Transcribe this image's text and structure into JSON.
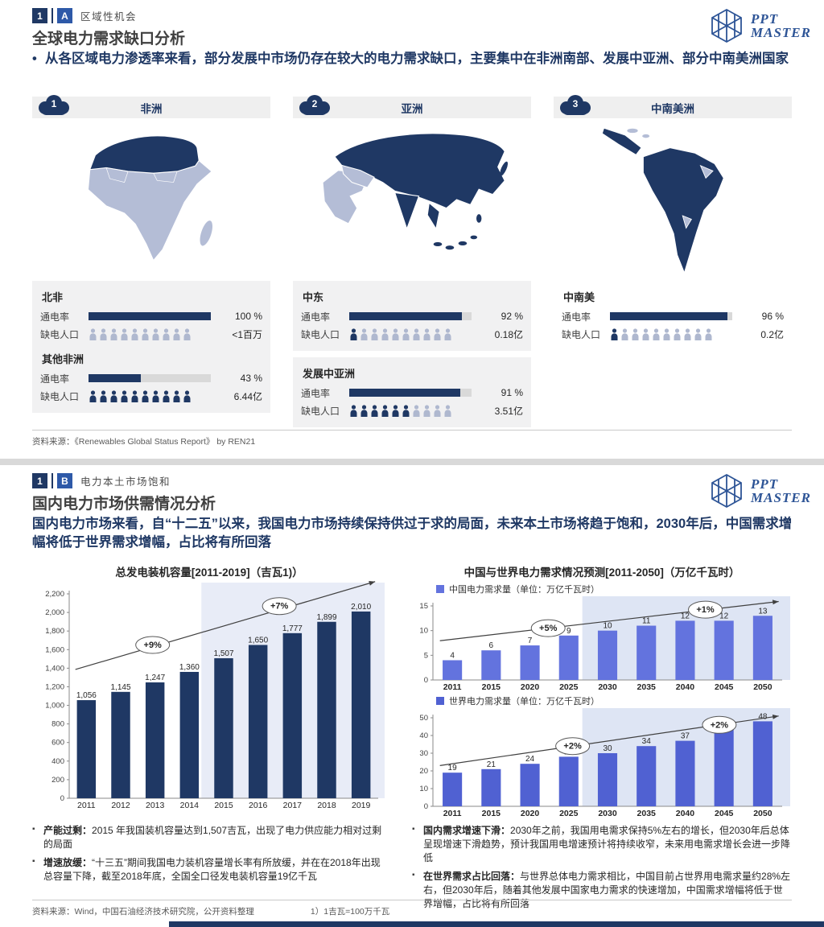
{
  "logo": {
    "line1": "PPT",
    "line2": "MASTER"
  },
  "colors": {
    "navy": "#1F3864",
    "map_light": "#B4BDD6",
    "map_dark": "#1F3864",
    "people_filled": "#1F3864",
    "people_empty": "#AFB8CF"
  },
  "slide1": {
    "badge_num": "1",
    "badge_letter": "A",
    "section_label": "区域性机会",
    "title": "全球电力需求缺口分析",
    "lead": "从各区域电力渗透率来看，部分发展中市场仍存在较大的电力需求缺口，主要集中在非洲南部、发展中亚洲、部分中南美洲国家",
    "columns": [
      {
        "num": "1",
        "region": "非洲",
        "groups": [
          {
            "name": "北非",
            "access_label": "通电率",
            "gap_label": "缺电人口",
            "pct": 100,
            "pct_text": "100 %",
            "gap_text": "<1百万",
            "people_filled": 0,
            "people_total": 10
          },
          {
            "name": "其他非洲",
            "access_label": "通电率",
            "gap_label": "缺电人口",
            "pct": 43,
            "pct_text": "43 %",
            "gap_text": "6.44亿",
            "people_filled": 10,
            "people_total": 10
          }
        ]
      },
      {
        "num": "2",
        "region": "亚洲",
        "groups": [
          {
            "name": "中东",
            "access_label": "通电率",
            "gap_label": "缺电人口",
            "pct": 92,
            "pct_text": "92 %",
            "gap_text": "0.18亿",
            "people_filled": 1,
            "people_total": 10
          },
          {
            "name": "发展中亚洲",
            "access_label": "通电率",
            "gap_label": "缺电人口",
            "pct": 91,
            "pct_text": "91 %",
            "gap_text": "3.51亿",
            "people_filled": 6,
            "people_total": 10
          }
        ]
      },
      {
        "num": "3",
        "region": "中南美洲",
        "groups": [
          {
            "name": "中南美",
            "access_label": "通电率",
            "gap_label": "缺电人口",
            "pct": 96,
            "pct_text": "96 %",
            "gap_text": "0.2亿",
            "people_filled": 1,
            "people_total": 10
          }
        ]
      }
    ],
    "source": "资料来源：《Renewables Global Status Report》 by REN21"
  },
  "slide2": {
    "badge_num": "1",
    "badge_letter": "B",
    "section_label": "电力本土市场饱和",
    "title": "国内电力市场供需情况分析",
    "lead": "国内电力市场来看，自“十二五”以来，我国电力市场持续保持供过于求的局面，未来本土市场将趋于饱和，2030年后，中国需求增幅将低于世界需求增幅，占比将有所回落",
    "left_chart_title": "总发电装机容量[2011-2019]（吉瓦1)）",
    "right_chart_title": "中国与世界电力需求情况预测[2011-2050]（万亿千瓦时）",
    "china_legend": "中国电力需求量（单位：万亿千瓦时）",
    "world_legend": "世界电力需求量（单位：万亿千瓦时）",
    "notes_left": [
      {
        "lead": "产能过剩：",
        "text": "2015 年我国装机容量达到1,507吉瓦，出现了电力供应能力相对过剩的局面"
      },
      {
        "lead": "增速放缓：",
        "text": "“十三五”期间我国电力装机容量增长率有所放缓，并在在2018年出现总容量下降，截至2018年底，全国全口径发电装机容量19亿千瓦"
      }
    ],
    "notes_right": [
      {
        "lead": "国内需求增速下滑：",
        "text": "2030年之前，我国用电需求保持5%左右的增长，但2030年后总体呈现增速下滑趋势，预计我国用电增速预计将持续收窄，未来用电需求增长会进一步降低"
      },
      {
        "lead": "在世界需求占比回落：",
        "text": "与世界总体电力需求相比，中国目前占世界用电需求量约28%左右，但2030年后，随着其他发展中国家电力需求的快速增加，中国需求增幅将低于世界增幅，占比将有所回落"
      }
    ],
    "source": "资料来源：Wind，中国石油经济技术研究院，公开资料整理",
    "footnote": "1）1吉瓦=100万千瓦"
  },
  "chart_data": [
    {
      "type": "bar",
      "title": "总发电装机容量[2011-2019]（吉瓦）",
      "categories": [
        "2011",
        "2012",
        "2013",
        "2014",
        "2015",
        "2016",
        "2017",
        "2018",
        "2019"
      ],
      "values": [
        1056,
        1145,
        1247,
        1360,
        1507,
        1650,
        1777,
        1899,
        2010
      ],
      "labels": [
        "1,056",
        "1,145",
        "1,247",
        "1,360",
        "1,507",
        "1,650",
        "1,777",
        "1,899",
        "2,010"
      ],
      "ylim": [
        0,
        2200
      ],
      "yticks": [
        0,
        200,
        400,
        600,
        800,
        1000,
        1200,
        1400,
        1600,
        1800,
        2000,
        2200
      ],
      "ytick_labels": [
        "0",
        "200",
        "400",
        "600",
        "800",
        "1,000",
        "1,200",
        "1,400",
        "1,600",
        "1,800",
        "2,000",
        "2,200"
      ],
      "bar_color": "#1F3864",
      "shade_from": "2015",
      "shade_color": "#E8ECF7",
      "annotations": [
        {
          "text": "+9%",
          "x": 0.27,
          "y": 0.25
        },
        {
          "text": "+7%",
          "x": 0.68,
          "y": 0.06
        }
      ],
      "arrow": {
        "x1": 0.02,
        "y1": 0.37,
        "x2": 0.99,
        "y2": -0.06
      },
      "grid": false,
      "legend_position": "none"
    },
    {
      "type": "bar",
      "title": "中国电力需求量（单位：万亿千瓦时）",
      "categories": [
        "2011",
        "2015",
        "2020",
        "2025",
        "2030",
        "2035",
        "2040",
        "2045",
        "2050"
      ],
      "values": [
        4,
        6,
        7,
        9,
        10,
        11,
        12,
        12,
        13
      ],
      "labels": [
        "4",
        "6",
        "7",
        "9",
        "10",
        "11",
        "12",
        "12",
        "13"
      ],
      "ylim": [
        0,
        15
      ],
      "yticks": [
        0,
        5,
        10,
        15
      ],
      "ytick_labels": [
        "0",
        "5",
        "10",
        "15"
      ],
      "bar_color": "#6373DE",
      "shade_from": "2030",
      "shade_color": "#DEE5F4",
      "annotations": [
        {
          "text": "+5%",
          "x": 0.33,
          "y": 0.3
        },
        {
          "text": "+1%",
          "x": 0.78,
          "y": 0.05
        }
      ],
      "arrow": {
        "x1": 0.02,
        "y1": 0.47,
        "x2": 0.99,
        "y2": -0.06
      },
      "grid": false,
      "legend_position": "top-left"
    },
    {
      "type": "bar",
      "title": "世界电力需求量（单位：万亿千瓦时）",
      "categories": [
        "2011",
        "2015",
        "2020",
        "2025",
        "2030",
        "2035",
        "2040",
        "2045",
        "2050"
      ],
      "values": [
        19,
        21,
        24,
        28,
        30,
        34,
        37,
        44,
        48
      ],
      "labels": [
        "19",
        "21",
        "24",
        "28",
        "30",
        "34",
        "37",
        "44",
        "48"
      ],
      "ylim": [
        0,
        50
      ],
      "yticks": [
        0,
        10,
        20,
        30,
        40,
        50
      ],
      "ytick_labels": [
        "0",
        "10",
        "20",
        "30",
        "40",
        "50"
      ],
      "bar_color": "#5061D2",
      "shade_from": "2030",
      "shade_color": "#DEE5F4",
      "annotations": [
        {
          "text": "+2%",
          "x": 0.4,
          "y": 0.32
        },
        {
          "text": "+2%",
          "x": 0.82,
          "y": 0.08
        }
      ],
      "arrow": {
        "x1": 0.02,
        "y1": 0.54,
        "x2": 0.99,
        "y2": -0.02
      },
      "grid": false,
      "legend_position": "top-left"
    }
  ]
}
